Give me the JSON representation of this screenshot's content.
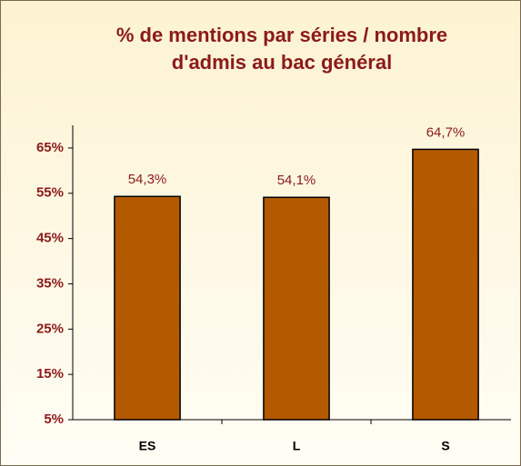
{
  "chart_data": {
    "type": "bar",
    "title": [
      "% de mentions par séries / nombre",
      "d'admis au bac général"
    ],
    "categories": [
      "ES",
      "L",
      "S"
    ],
    "values": [
      54.3,
      54.1,
      64.7
    ],
    "value_labels": [
      "54,3%",
      "54,1%",
      "64,7%"
    ],
    "color": "#b35900",
    "ylim": [
      5,
      70
    ],
    "yticks": [
      {
        "value": 5,
        "label": "5%"
      },
      {
        "value": 15,
        "label": "15%"
      },
      {
        "value": 25,
        "label": "25%"
      },
      {
        "value": 35,
        "label": "35%"
      },
      {
        "value": 45,
        "label": "45%"
      },
      {
        "value": 55,
        "label": "55%"
      },
      {
        "value": 65,
        "label": "65%"
      }
    ],
    "grid": false
  }
}
